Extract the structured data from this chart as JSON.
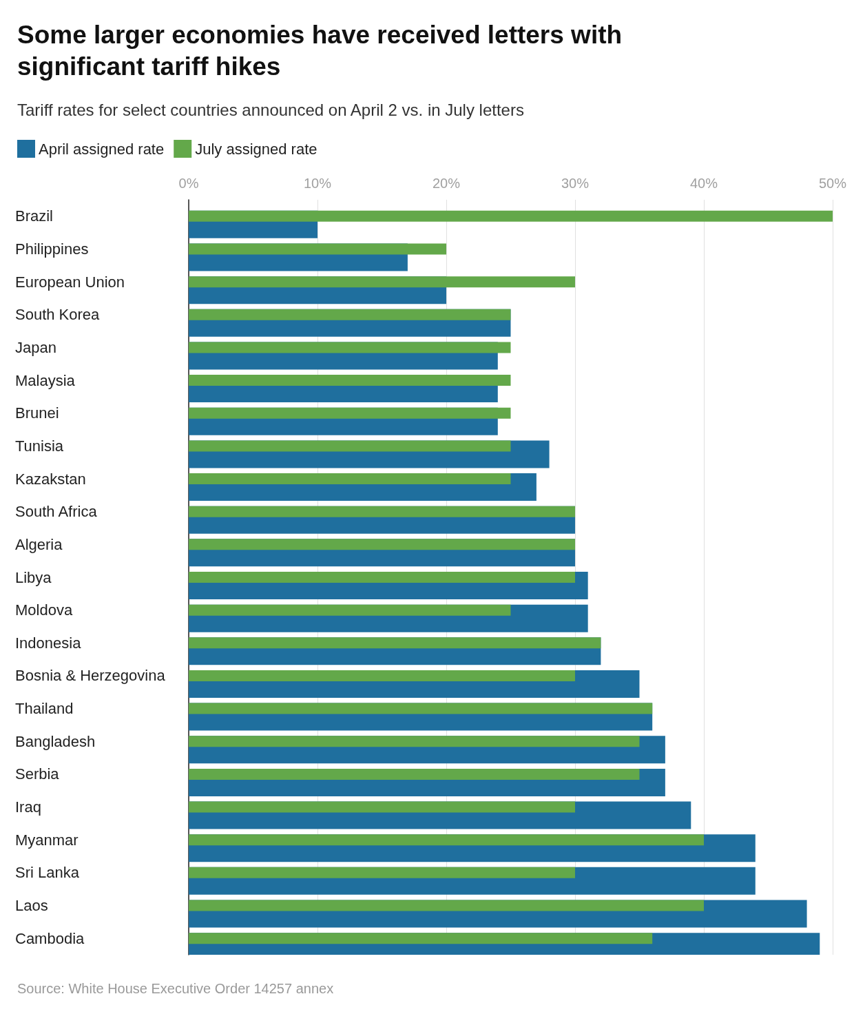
{
  "chart_data": {
    "type": "bar",
    "orientation": "horizontal",
    "title": "Some larger economies have received letters with significant tariff hikes",
    "subtitle": "Tariff rates for select countries announced on April 2 vs. in July letters",
    "categories": [
      "Brazil",
      "Philippines",
      "European Union",
      "South Korea",
      "Japan",
      "Malaysia",
      "Brunei",
      "Tunisia",
      "Kazakstan",
      "South Africa",
      "Algeria",
      "Libya",
      "Moldova",
      "Indonesia",
      "Bosnia & Herzegovina",
      "Thailand",
      "Bangladesh",
      "Serbia",
      "Iraq",
      "Myanmar",
      "Sri Lanka",
      "Laos",
      "Cambodia"
    ],
    "series": [
      {
        "name": "April assigned rate",
        "color": "#1f6f9e",
        "values": [
          10,
          17,
          20,
          25,
          24,
          24,
          24,
          28,
          27,
          30,
          30,
          31,
          31,
          32,
          35,
          36,
          37,
          37,
          39,
          44,
          44,
          48,
          49
        ]
      },
      {
        "name": "July assigned rate",
        "color": "#63a84a",
        "values": [
          50,
          20,
          30,
          25,
          25,
          25,
          25,
          25,
          25,
          30,
          30,
          30,
          25,
          32,
          30,
          36,
          35,
          35,
          30,
          40,
          30,
          40,
          36
        ]
      }
    ],
    "xlim": [
      0,
      50
    ],
    "xticks": [
      {
        "value": 0,
        "label": "0%"
      },
      {
        "value": 10,
        "label": "10%"
      },
      {
        "value": 20,
        "label": "20%"
      },
      {
        "value": 30,
        "label": "30%"
      },
      {
        "value": 40,
        "label": "40%"
      },
      {
        "value": 50,
        "label": "50%"
      }
    ],
    "grid": "x",
    "legend": "top left",
    "annotations": [
      "Source: White House Executive Order 14257 annex"
    ]
  }
}
